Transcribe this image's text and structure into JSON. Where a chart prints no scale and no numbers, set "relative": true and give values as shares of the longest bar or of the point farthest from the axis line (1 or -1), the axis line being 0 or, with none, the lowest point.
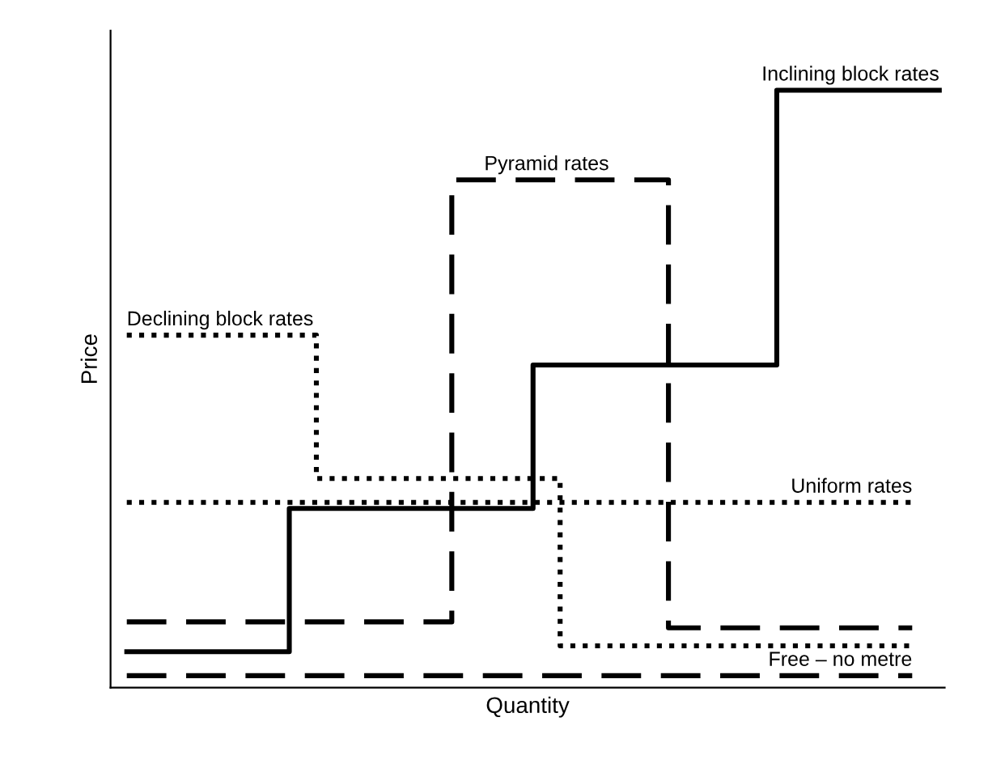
{
  "chart_data": {
    "type": "step",
    "relative": true,
    "xlabel": "Quantity",
    "ylabel": "Price",
    "legend": false,
    "marker": "none",
    "categories": [
      null,
      null,
      null,
      null,
      null,
      null,
      null,
      null,
      null,
      null,
      null,
      null,
      null,
      null,
      null,
      null,
      null,
      null,
      null,
      null,
      null,
      null,
      null,
      null,
      null,
      null,
      null,
      null,
      null,
      null,
      null
    ],
    "series": [
      {
        "name": "Inclining block rates",
        "color": "#000000",
        "line_style": "solid",
        "values": [
          0.06,
          0.06,
          0.06,
          0.06,
          0.06,
          0.06,
          0.3,
          0.3,
          0.3,
          0.3,
          0.3,
          0.3,
          0.3,
          0.3,
          0.3,
          0.54,
          0.54,
          0.54,
          0.54,
          0.54,
          0.54,
          0.54,
          0.54,
          0.54,
          1.0,
          1.0,
          1.0,
          1.0,
          1.0,
          1.0,
          1.0
        ]
      },
      {
        "name": "Pyramid rates",
        "color": "#000000",
        "line_style": "dashed",
        "values": [
          0.11,
          0.11,
          0.11,
          0.11,
          0.11,
          0.11,
          0.11,
          0.11,
          0.11,
          0.11,
          0.11,
          0.11,
          0.85,
          0.85,
          0.85,
          0.85,
          0.85,
          0.85,
          0.85,
          0.85,
          0.1,
          0.1,
          0.1,
          0.1,
          0.1,
          0.1,
          0.1,
          0.1,
          0.1,
          0.1,
          null
        ]
      },
      {
        "name": "Declining block rates",
        "color": "#000000",
        "line_style": "dotted",
        "values": [
          0.59,
          0.59,
          0.59,
          0.59,
          0.59,
          0.59,
          0.59,
          0.35,
          0.35,
          0.35,
          0.35,
          0.35,
          0.35,
          0.35,
          0.35,
          0.35,
          0.07,
          0.07,
          0.07,
          0.07,
          0.07,
          0.07,
          0.07,
          0.07,
          0.07,
          0.07,
          0.07,
          0.07,
          0.07,
          0.07,
          null
        ]
      },
      {
        "name": "Uniform rates",
        "color": "#000000",
        "line_style": "dotted",
        "values": [
          0.31,
          0.31,
          0.31,
          0.31,
          0.31,
          0.31,
          0.31,
          0.31,
          0.31,
          0.31,
          0.31,
          0.31,
          0.31,
          0.31,
          0.31,
          0.31,
          0.31,
          0.31,
          0.31,
          0.31,
          0.31,
          0.31,
          0.31,
          0.31,
          0.31,
          0.31,
          0.31,
          0.31,
          0.31,
          0.31,
          null
        ]
      },
      {
        "name": "Free – no metre",
        "color": "#000000",
        "line_style": "dashed",
        "values": [
          0.02,
          0.02,
          0.02,
          0.02,
          0.02,
          0.02,
          0.02,
          0.02,
          0.02,
          0.02,
          0.02,
          0.02,
          0.02,
          0.02,
          0.02,
          0.02,
          0.02,
          0.02,
          0.02,
          0.02,
          0.02,
          0.02,
          0.02,
          0.02,
          0.02,
          0.02,
          0.02,
          0.02,
          0.02,
          0.02,
          null
        ]
      }
    ]
  }
}
